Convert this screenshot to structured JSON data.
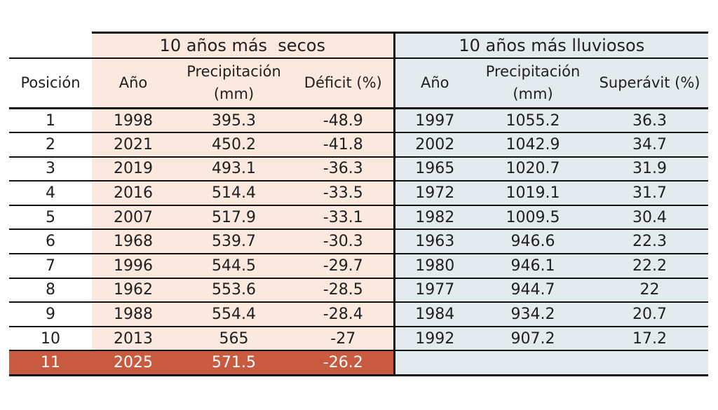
{
  "chart_data": {
    "type": "table",
    "group_headers": {
      "dry": "10 años más  secos",
      "wet": "10 años más lluviosos"
    },
    "column_headers": {
      "position": "Posición",
      "dry_year": "Año",
      "dry_precip_line1": "Precipitación",
      "dry_precip_line2": "(mm)",
      "dry_deficit": "Déficit (%)",
      "wet_year": "Año",
      "wet_precip_line1": "Precipitación",
      "wet_precip_line2": "(mm)",
      "wet_surplus": "Superávit (%)"
    },
    "rows": [
      {
        "pos": "1",
        "dry_year": "1998",
        "dry_precip": "395.3",
        "deficit": "-48.9",
        "wet_year": "1997",
        "wet_precip": "1055.2",
        "surplus": "36.3"
      },
      {
        "pos": "2",
        "dry_year": "2021",
        "dry_precip": "450.2",
        "deficit": "-41.8",
        "wet_year": "2002",
        "wet_precip": "1042.9",
        "surplus": "34.7"
      },
      {
        "pos": "3",
        "dry_year": "2019",
        "dry_precip": "493.1",
        "deficit": "-36.3",
        "wet_year": "1965",
        "wet_precip": "1020.7",
        "surplus": "31.9"
      },
      {
        "pos": "4",
        "dry_year": "2016",
        "dry_precip": "514.4",
        "deficit": "-33.5",
        "wet_year": "1972",
        "wet_precip": "1019.1",
        "surplus": "31.7"
      },
      {
        "pos": "5",
        "dry_year": "2007",
        "dry_precip": "517.9",
        "deficit": "-33.1",
        "wet_year": "1982",
        "wet_precip": "1009.5",
        "surplus": "30.4"
      },
      {
        "pos": "6",
        "dry_year": "1968",
        "dry_precip": "539.7",
        "deficit": "-30.3",
        "wet_year": "1963",
        "wet_precip": "946.6",
        "surplus": "22.3"
      },
      {
        "pos": "7",
        "dry_year": "1996",
        "dry_precip": "544.5",
        "deficit": "-29.7",
        "wet_year": "1980",
        "wet_precip": "946.1",
        "surplus": "22.2"
      },
      {
        "pos": "8",
        "dry_year": "1962",
        "dry_precip": "553.6",
        "deficit": "-28.5",
        "wet_year": "1977",
        "wet_precip": "944.7",
        "surplus": "22"
      },
      {
        "pos": "9",
        "dry_year": "1988",
        "dry_precip": "554.4",
        "deficit": "-28.4",
        "wet_year": "1984",
        "wet_precip": "934.2",
        "surplus": "20.7"
      },
      {
        "pos": "10",
        "dry_year": "2013",
        "dry_precip": "565",
        "deficit": "-27",
        "wet_year": "1992",
        "wet_precip": "907.2",
        "surplus": "17.2"
      },
      {
        "pos": "11",
        "dry_year": "2025",
        "dry_precip": "571.5",
        "deficit": "-26.2",
        "wet_year": "",
        "wet_precip": "",
        "surplus": "",
        "highlight": true
      }
    ],
    "colors": {
      "dry_fill": "#fbe9e0",
      "wet_fill": "#e4ebef",
      "highlight_fill": "#c85a40",
      "highlight_text": "#ffffff",
      "rule": "#111111"
    }
  }
}
